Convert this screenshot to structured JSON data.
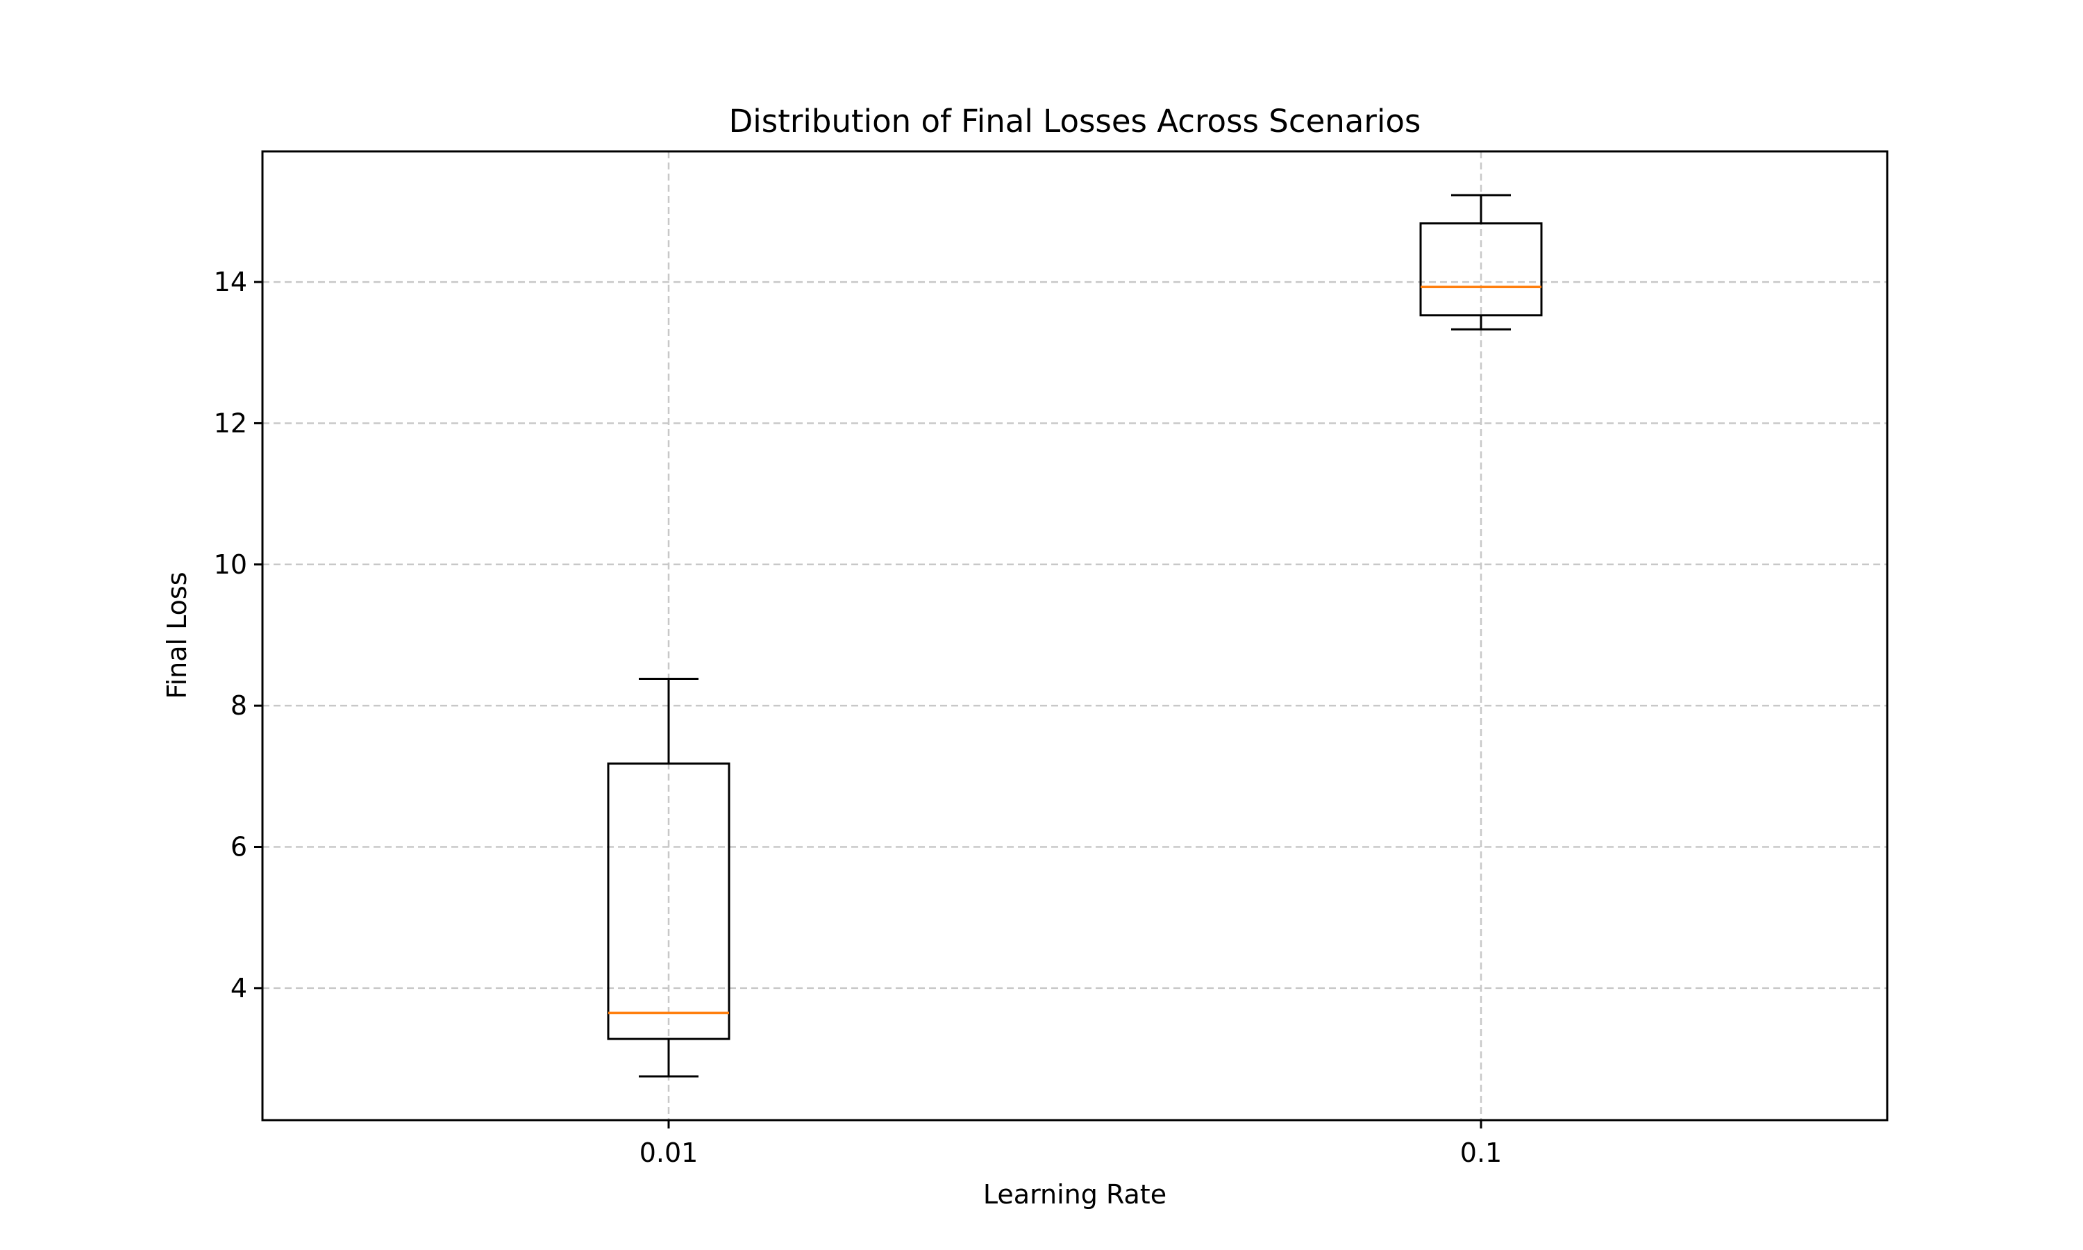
{
  "chart_data": {
    "type": "box",
    "title": "Distribution of Final Losses Across Scenarios",
    "xlabel": "Learning Rate",
    "ylabel": "Final Loss",
    "categories": [
      "0.01",
      "0.1"
    ],
    "boxes": [
      {
        "category": "0.01",
        "whisker_low": 2.75,
        "q1": 3.28,
        "median": 3.65,
        "q3": 7.18,
        "whisker_high": 8.38
      },
      {
        "category": "0.1",
        "whisker_low": 13.33,
        "q1": 13.53,
        "median": 13.93,
        "q3": 14.83,
        "whisker_high": 15.23
      }
    ],
    "yticks": [
      4,
      6,
      8,
      10,
      12,
      14
    ],
    "ylim": [
      2.13,
      15.85
    ],
    "grid": true,
    "colors": {
      "box": "#000000",
      "median": "#ff7f0e",
      "grid": "#c8c8c8"
    }
  }
}
